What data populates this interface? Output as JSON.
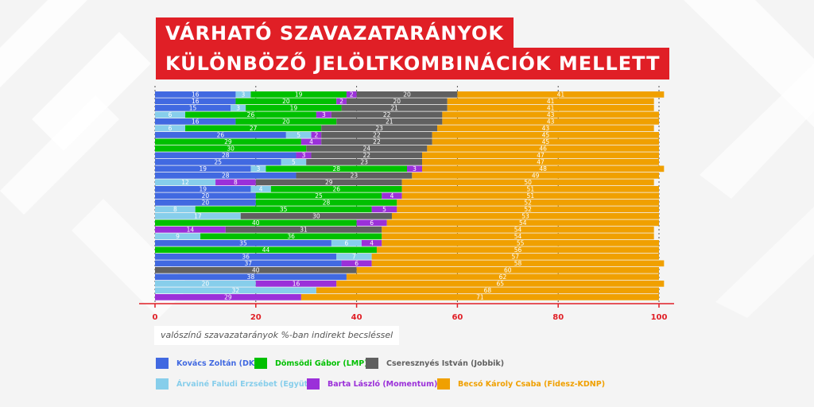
{
  "title": {
    "line1": "VÁRHATÓ SZAVAZATARÁNYOK",
    "line2": "KÜLÖNBÖZŐ JELÖLTKOMBINÁCIÓK MELLETT"
  },
  "x_axis_caption": "valószínű szavazatarányok %-ban indirekt becsléssel",
  "legend": [
    {
      "key": "kovacs",
      "label": "Kovács Zoltán (DK)",
      "color": "#4169e1"
    },
    {
      "key": "domsodi",
      "label": "Dömsödi Gábor (LMP)",
      "color": "#00c000"
    },
    {
      "key": "cseresznyes",
      "label": "Cseresznyés István (Jobbik)",
      "color": "#606060"
    },
    {
      "key": "arvaine",
      "label": "Árvainé Faludi Erzsébet (Együtt)",
      "color": "#87ceeb"
    },
    {
      "key": "barta",
      "label": "Barta László (Momentum)",
      "color": "#9b30d9"
    },
    {
      "key": "becso",
      "label": "Becsó Károly Csaba (Fidesz-KDNP)",
      "color": "#f0a000"
    }
  ],
  "chart_data": {
    "type": "bar",
    "orientation": "horizontal",
    "stacked": true,
    "xlim": [
      0,
      100
    ],
    "xticks": [
      0,
      20,
      40,
      60,
      80,
      100
    ],
    "grid": "vertical dashed at ticks",
    "rows": [
      [
        [
          "kovacs",
          16
        ],
        [
          "arvaine",
          3
        ],
        [
          "domsodi",
          19
        ],
        [
          "barta",
          2
        ],
        [
          "cseresznyes",
          20
        ],
        [
          "becso",
          41
        ]
      ],
      [
        [
          "kovacs",
          16
        ],
        [
          "domsodi",
          20
        ],
        [
          "barta",
          2
        ],
        [
          "cseresznyes",
          20
        ],
        [
          "becso",
          41
        ]
      ],
      [
        [
          "kovacs",
          15
        ],
        [
          "arvaine",
          3
        ],
        [
          "domsodi",
          19
        ],
        [
          "cseresznyes",
          21
        ],
        [
          "becso",
          41
        ]
      ],
      [
        [
          "arvaine",
          6
        ],
        [
          "domsodi",
          26
        ],
        [
          "barta",
          3
        ],
        [
          "cseresznyes",
          22
        ],
        [
          "becso",
          43
        ]
      ],
      [
        [
          "kovacs",
          16
        ],
        [
          "domsodi",
          20
        ],
        [
          "cseresznyes",
          21
        ],
        [
          "becso",
          43
        ]
      ],
      [
        [
          "arvaine",
          6
        ],
        [
          "domsodi",
          27
        ],
        [
          "cseresznyes",
          23
        ],
        [
          "becso",
          43
        ]
      ],
      [
        [
          "kovacs",
          26
        ],
        [
          "arvaine",
          5
        ],
        [
          "barta",
          2
        ],
        [
          "cseresznyes",
          22
        ],
        [
          "becso",
          45
        ]
      ],
      [
        [
          "domsodi",
          29
        ],
        [
          "barta",
          4
        ],
        [
          "cseresznyes",
          22
        ],
        [
          "becso",
          45
        ]
      ],
      [
        [
          "domsodi",
          30
        ],
        [
          "cseresznyes",
          24
        ],
        [
          "becso",
          46
        ]
      ],
      [
        [
          "kovacs",
          28
        ],
        [
          "barta",
          3
        ],
        [
          "cseresznyes",
          22
        ],
        [
          "becso",
          47
        ]
      ],
      [
        [
          "kovacs",
          25
        ],
        [
          "arvaine",
          5
        ],
        [
          "cseresznyes",
          23
        ],
        [
          "becso",
          47
        ]
      ],
      [
        [
          "kovacs",
          19
        ],
        [
          "arvaine",
          3
        ],
        [
          "domsodi",
          28
        ],
        [
          "barta",
          3
        ],
        [
          "becso",
          48
        ]
      ],
      [
        [
          "kovacs",
          28
        ],
        [
          "cseresznyes",
          23
        ],
        [
          "becso",
          49
        ]
      ],
      [
        [
          "arvaine",
          12
        ],
        [
          "barta",
          8
        ],
        [
          "cseresznyes",
          29
        ],
        [
          "becso",
          50
        ]
      ],
      [
        [
          "kovacs",
          19
        ],
        [
          "arvaine",
          4
        ],
        [
          "domsodi",
          26
        ],
        [
          "becso",
          51
        ]
      ],
      [
        [
          "kovacs",
          20
        ],
        [
          "domsodi",
          25
        ],
        [
          "barta",
          4
        ],
        [
          "becso",
          51
        ]
      ],
      [
        [
          "kovacs",
          20
        ],
        [
          "domsodi",
          28
        ],
        [
          "becso",
          52
        ]
      ],
      [
        [
          "arvaine",
          8
        ],
        [
          "domsodi",
          35
        ],
        [
          "barta",
          5
        ],
        [
          "becso",
          52
        ]
      ],
      [
        [
          "arvaine",
          17
        ],
        [
          "cseresznyes",
          30
        ],
        [
          "becso",
          53
        ]
      ],
      [
        [
          "domsodi",
          40
        ],
        [
          "barta",
          6
        ],
        [
          "becso",
          54
        ]
      ],
      [
        [
          "barta",
          14
        ],
        [
          "cseresznyes",
          31
        ],
        [
          "becso",
          54
        ]
      ],
      [
        [
          "arvaine",
          9
        ],
        [
          "domsodi",
          36
        ],
        [
          "becso",
          54
        ]
      ],
      [
        [
          "kovacs",
          35
        ],
        [
          "arvaine",
          6
        ],
        [
          "barta",
          4
        ],
        [
          "becso",
          55
        ]
      ],
      [
        [
          "domsodi",
          44
        ],
        [
          "becso",
          56
        ]
      ],
      [
        [
          "kovacs",
          36
        ],
        [
          "arvaine",
          7
        ],
        [
          "becso",
          57
        ]
      ],
      [
        [
          "kovacs",
          37
        ],
        [
          "barta",
          6
        ],
        [
          "becso",
          58
        ]
      ],
      [
        [
          "cseresznyes",
          40
        ],
        [
          "becso",
          60
        ]
      ],
      [
        [
          "kovacs",
          38
        ],
        [
          "becso",
          62
        ]
      ],
      [
        [
          "arvaine",
          20
        ],
        [
          "barta",
          16
        ],
        [
          "becso",
          65
        ]
      ],
      [
        [
          "arvaine",
          32
        ],
        [
          "becso",
          68
        ]
      ],
      [
        [
          "barta",
          29
        ],
        [
          "becso",
          71
        ]
      ]
    ]
  }
}
